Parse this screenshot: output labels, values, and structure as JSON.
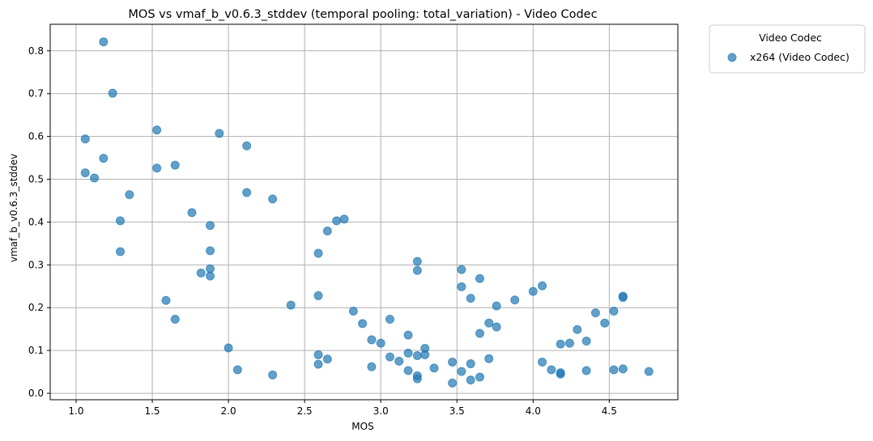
{
  "chart_data": {
    "type": "scatter",
    "title": "MOS vs vmaf_b_v0.6.3_stddev (temporal pooling: total_variation) - Video Codec",
    "xlabel": "MOS",
    "ylabel": "vmaf_b_v0.6.3_stddev",
    "xlim": [
      0.83,
      4.95
    ],
    "ylim": [
      -0.015,
      0.862
    ],
    "xticks": [
      1.0,
      1.5,
      2.0,
      2.5,
      3.0,
      3.5,
      4.0,
      4.5
    ],
    "xtick_labels": [
      "1.0",
      "1.5",
      "2.0",
      "2.5",
      "3.0",
      "3.5",
      "4.0",
      "4.5"
    ],
    "yticks": [
      0.0,
      0.1,
      0.2,
      0.3,
      0.4,
      0.5,
      0.6,
      0.7,
      0.8
    ],
    "ytick_labels": [
      "0.0",
      "0.1",
      "0.2",
      "0.3",
      "0.4",
      "0.5",
      "0.6",
      "0.7",
      "0.8"
    ],
    "grid": true,
    "legend": {
      "title": "Video Codec",
      "placement": "outside-top-right",
      "entries": [
        "x264 (Video Codec)"
      ]
    },
    "color": "#1f77b4",
    "series": [
      {
        "name": "x264 (Video Codec)",
        "points": [
          [
            1.06,
            0.594
          ],
          [
            1.06,
            0.515
          ],
          [
            1.12,
            0.503
          ],
          [
            1.18,
            0.821
          ],
          [
            1.18,
            0.549
          ],
          [
            1.24,
            0.701
          ],
          [
            1.29,
            0.403
          ],
          [
            1.29,
            0.331
          ],
          [
            1.35,
            0.464
          ],
          [
            1.53,
            0.615
          ],
          [
            1.53,
            0.526
          ],
          [
            1.59,
            0.217
          ],
          [
            1.65,
            0.533
          ],
          [
            1.65,
            0.173
          ],
          [
            1.76,
            0.422
          ],
          [
            1.82,
            0.281
          ],
          [
            1.88,
            0.392
          ],
          [
            1.88,
            0.333
          ],
          [
            1.88,
            0.291
          ],
          [
            1.88,
            0.274
          ],
          [
            1.94,
            0.607
          ],
          [
            2.0,
            0.106
          ],
          [
            2.06,
            0.055
          ],
          [
            2.12,
            0.578
          ],
          [
            2.12,
            0.469
          ],
          [
            2.29,
            0.454
          ],
          [
            2.29,
            0.043
          ],
          [
            2.41,
            0.206
          ],
          [
            2.59,
            0.327
          ],
          [
            2.59,
            0.228
          ],
          [
            2.59,
            0.09
          ],
          [
            2.59,
            0.068
          ],
          [
            2.65,
            0.379
          ],
          [
            2.65,
            0.08
          ],
          [
            2.71,
            0.403
          ],
          [
            2.76,
            0.407
          ],
          [
            2.82,
            0.192
          ],
          [
            2.88,
            0.163
          ],
          [
            2.94,
            0.125
          ],
          [
            2.94,
            0.062
          ],
          [
            3.0,
            0.117
          ],
          [
            3.06,
            0.173
          ],
          [
            3.06,
            0.085
          ],
          [
            3.12,
            0.075
          ],
          [
            3.18,
            0.136
          ],
          [
            3.18,
            0.094
          ],
          [
            3.18,
            0.053
          ],
          [
            3.24,
            0.308
          ],
          [
            3.24,
            0.287
          ],
          [
            3.24,
            0.088
          ],
          [
            3.24,
            0.041
          ],
          [
            3.24,
            0.034
          ],
          [
            3.29,
            0.105
          ],
          [
            3.29,
            0.09
          ],
          [
            3.35,
            0.059
          ],
          [
            3.47,
            0.073
          ],
          [
            3.47,
            0.024
          ],
          [
            3.53,
            0.289
          ],
          [
            3.53,
            0.249
          ],
          [
            3.53,
            0.051
          ],
          [
            3.59,
            0.222
          ],
          [
            3.59,
            0.069
          ],
          [
            3.59,
            0.031
          ],
          [
            3.65,
            0.268
          ],
          [
            3.65,
            0.14
          ],
          [
            3.65,
            0.038
          ],
          [
            3.71,
            0.164
          ],
          [
            3.71,
            0.081
          ],
          [
            3.76,
            0.204
          ],
          [
            3.76,
            0.155
          ],
          [
            3.88,
            0.218
          ],
          [
            4.0,
            0.238
          ],
          [
            4.06,
            0.251
          ],
          [
            4.06,
            0.073
          ],
          [
            4.12,
            0.055
          ],
          [
            4.18,
            0.115
          ],
          [
            4.18,
            0.048
          ],
          [
            4.18,
            0.045
          ],
          [
            4.24,
            0.117
          ],
          [
            4.29,
            0.149
          ],
          [
            4.35,
            0.122
          ],
          [
            4.35,
            0.053
          ],
          [
            4.41,
            0.188
          ],
          [
            4.47,
            0.164
          ],
          [
            4.53,
            0.192
          ],
          [
            4.53,
            0.055
          ],
          [
            4.59,
            0.227
          ],
          [
            4.59,
            0.224
          ],
          [
            4.59,
            0.057
          ],
          [
            4.76,
            0.051
          ]
        ]
      }
    ]
  }
}
